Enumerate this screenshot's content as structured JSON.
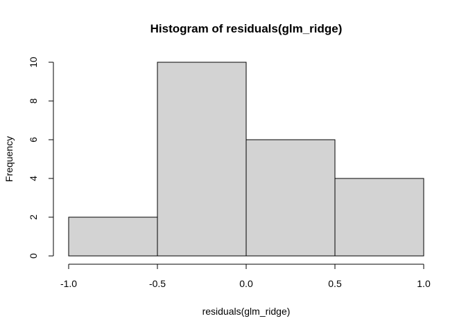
{
  "chart_data": {
    "type": "histogram",
    "title": "Histogram of residuals(glm_ridge)",
    "xlabel": "residuals(glm_ridge)",
    "ylabel": "Frequency",
    "bins": [
      {
        "from": -1.0,
        "to": -0.5,
        "count": 2
      },
      {
        "from": -0.5,
        "to": 0.0,
        "count": 10
      },
      {
        "from": 0.0,
        "to": 0.5,
        "count": 6
      },
      {
        "from": 0.5,
        "to": 1.0,
        "count": 4
      }
    ],
    "xlim": [
      -1.0,
      1.0
    ],
    "ylim": [
      0,
      10
    ],
    "x_ticks": [
      {
        "value": -1.0,
        "label": "-1.0"
      },
      {
        "value": -0.5,
        "label": "-0.5"
      },
      {
        "value": 0.0,
        "label": "0.0"
      },
      {
        "value": 0.5,
        "label": "0.5"
      },
      {
        "value": 1.0,
        "label": "1.0"
      }
    ],
    "y_ticks": [
      {
        "value": 0,
        "label": "0"
      },
      {
        "value": 2,
        "label": "2"
      },
      {
        "value": 4,
        "label": "4"
      },
      {
        "value": 6,
        "label": "6"
      },
      {
        "value": 8,
        "label": "8"
      },
      {
        "value": 10,
        "label": "10"
      }
    ],
    "bar_fill": "#d3d3d3",
    "bar_stroke": "#000000",
    "grid": false
  }
}
